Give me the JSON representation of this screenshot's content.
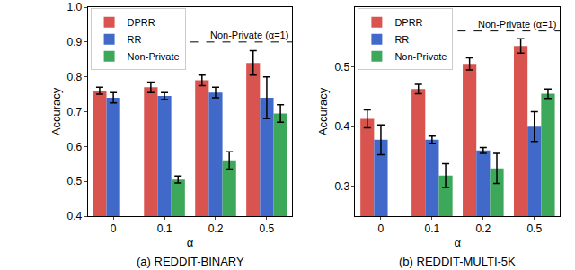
{
  "chart_data": [
    {
      "type": "bar",
      "title": "(a) REDDIT-BINARY",
      "x_label": "α",
      "y_label": "Accuracy",
      "categories": [
        "0",
        "0.1",
        "0.2",
        "0.5"
      ],
      "series": [
        {
          "name": "DPRR",
          "color": "#d9534f",
          "values": [
            0.76,
            0.77,
            0.79,
            0.84
          ],
          "errors": [
            0.01,
            0.015,
            0.015,
            0.035
          ]
        },
        {
          "name": "RR",
          "color": "#4169c9",
          "values": [
            0.74,
            0.745,
            0.755,
            0.74
          ],
          "errors": [
            0.015,
            0.01,
            0.015,
            0.06
          ]
        },
        {
          "name": "Non-Private",
          "color": "#3ea85a",
          "values": [
            null,
            0.505,
            0.56,
            0.695
          ],
          "errors": [
            null,
            0.01,
            0.025,
            0.025
          ]
        }
      ],
      "annotations": [
        {
          "text": "Non-Private (α=1)",
          "y": 0.9,
          "line_style": "dashed"
        }
      ],
      "ylim": [
        0.4,
        1.0
      ],
      "yticks": [
        0.4,
        0.5,
        0.6,
        0.7,
        0.8,
        0.9,
        {
          "value": 1.0,
          "label": "1.0"
        }
      ],
      "grid": false,
      "legend": "upper left"
    },
    {
      "type": "bar",
      "title": "(b) REDDIT-MULTI-5K",
      "x_label": "α",
      "y_label": "Accuracy",
      "categories": [
        "0",
        "0.1",
        "0.2",
        "0.5"
      ],
      "series": [
        {
          "name": "DPRR",
          "color": "#d9534f",
          "values": [
            0.413,
            0.463,
            0.505,
            0.535
          ],
          "errors": [
            0.015,
            0.008,
            0.01,
            0.012
          ]
        },
        {
          "name": "RR",
          "color": "#4169c9",
          "values": [
            0.378,
            0.378,
            0.36,
            0.4
          ],
          "errors": [
            0.025,
            0.006,
            0.005,
            0.025
          ]
        },
        {
          "name": "Non-Private",
          "color": "#3ea85a",
          "values": [
            null,
            0.318,
            0.33,
            0.455
          ],
          "errors": [
            null,
            0.02,
            0.025,
            0.008
          ]
        }
      ],
      "annotations": [
        {
          "text": "Non-Private (α=1)",
          "y": 0.56,
          "line_style": "dashed"
        }
      ],
      "ylim": [
        0.25,
        0.6
      ],
      "yticks": [
        0.3,
        0.4,
        0.5
      ],
      "grid": false,
      "legend": "upper left"
    }
  ]
}
